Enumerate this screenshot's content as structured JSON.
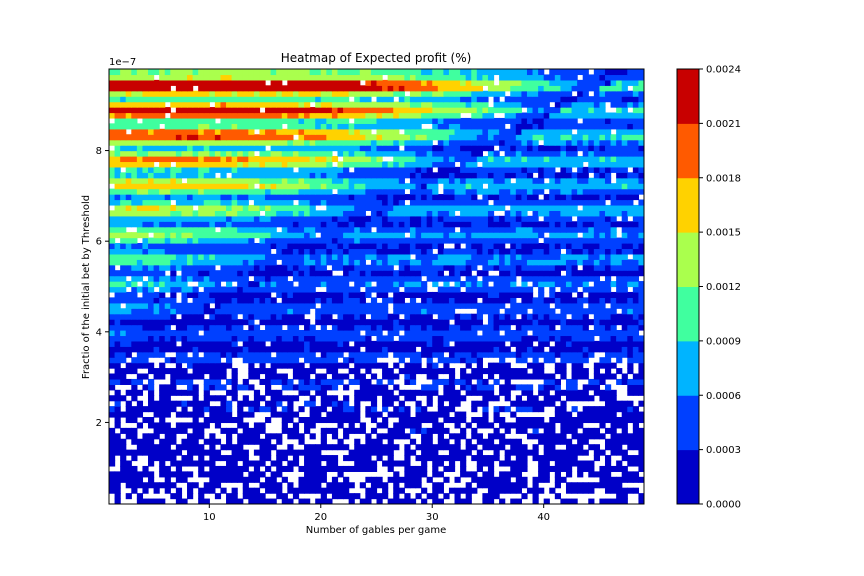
{
  "chart_data": {
    "type": "heatmap",
    "title": "Heatmap of Expected profit (%)",
    "xlabel": "Number of gables per game",
    "ylabel": "Fractio of the initial bet by Threshold",
    "y_offset_label": "1e−7",
    "xlim": [
      1,
      49
    ],
    "ylim": [
      0.2,
      9.8
    ],
    "x_ticks": [
      10,
      20,
      30,
      40
    ],
    "x_tick_labels": [
      "10",
      "20",
      "30",
      "40"
    ],
    "y_ticks": [
      2,
      4,
      6,
      8
    ],
    "y_tick_labels": [
      "2",
      "4",
      "6",
      "8"
    ],
    "colorbar": {
      "levels": [
        0.0,
        0.0003,
        0.0006,
        0.0009,
        0.0012,
        0.0015,
        0.0018,
        0.0021,
        0.0024
      ],
      "tick_labels": [
        "0.0000",
        "0.0003",
        "0.0006",
        "0.0009",
        "0.0012",
        "0.0015",
        "0.0018",
        "0.0021",
        "0.0024"
      ],
      "colors": [
        "#0000c8",
        "#0040ff",
        "#00b4ff",
        "#40ff9f",
        "#aaff4d",
        "#ffd200",
        "#ff5a00",
        "#c80000"
      ]
    },
    "grid": false,
    "legend": "none"
  }
}
